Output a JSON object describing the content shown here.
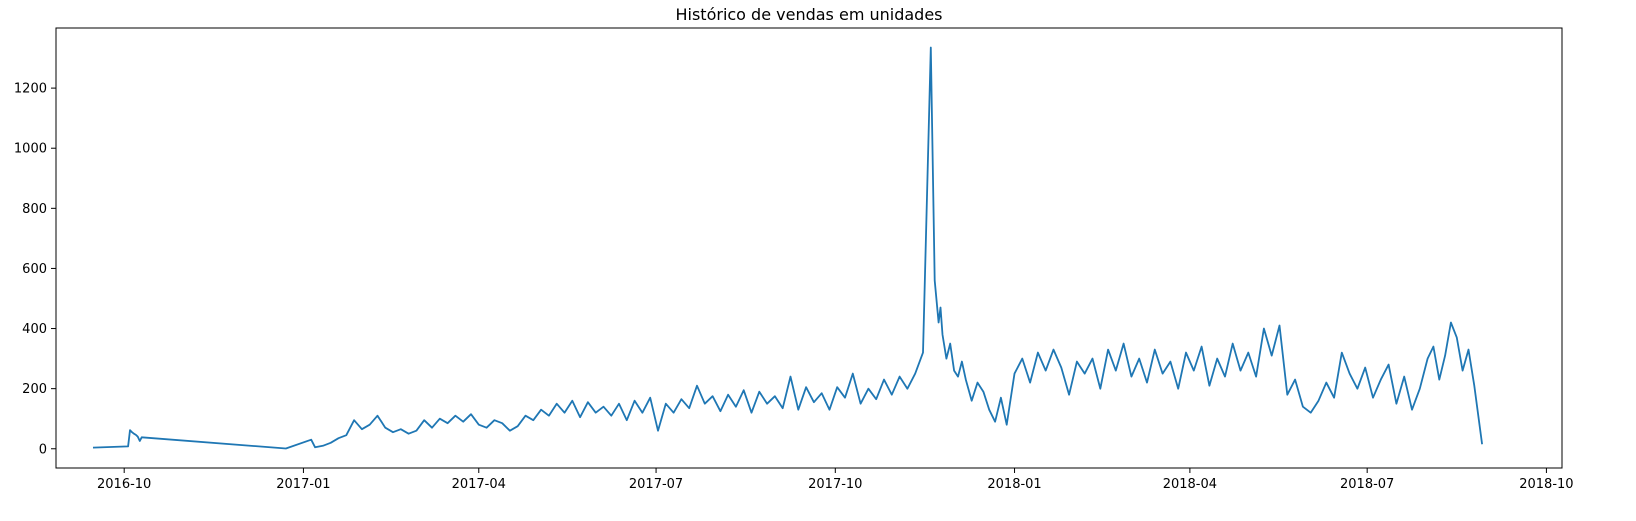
{
  "chart_data": {
    "type": "line",
    "title": "Histórico de vendas em unidades",
    "xlabel": "",
    "ylabel": "",
    "x_range": [
      "2016-08-27",
      "2018-10-09"
    ],
    "ylim": [
      -64,
      1400
    ],
    "grid": false,
    "legend": "none",
    "x_ticks": [
      {
        "date": "2016-10-01",
        "label": "2016-10"
      },
      {
        "date": "2017-01-01",
        "label": "2017-01"
      },
      {
        "date": "2017-04-01",
        "label": "2017-04"
      },
      {
        "date": "2017-07-01",
        "label": "2017-07"
      },
      {
        "date": "2017-10-01",
        "label": "2017-10"
      },
      {
        "date": "2018-01-01",
        "label": "2018-01"
      },
      {
        "date": "2018-04-01",
        "label": "2018-04"
      },
      {
        "date": "2018-07-01",
        "label": "2018-07"
      },
      {
        "date": "2018-10-01",
        "label": "2018-10"
      }
    ],
    "y_ticks": [
      0,
      200,
      400,
      600,
      800,
      1000,
      1200
    ],
    "series": [
      {
        "color": "#1f77b4",
        "x": [
          "2016-09-15",
          "2016-10-03",
          "2016-10-04",
          "2016-10-05",
          "2016-10-06",
          "2016-10-07",
          "2016-10-08",
          "2016-10-09",
          "2016-10-10",
          "2016-12-23",
          "2017-01-05",
          "2017-01-07",
          "2017-01-11",
          "2017-01-15",
          "2017-01-19",
          "2017-01-23",
          "2017-01-27",
          "2017-01-31",
          "2017-02-04",
          "2017-02-08",
          "2017-02-12",
          "2017-02-16",
          "2017-02-20",
          "2017-02-24",
          "2017-02-28",
          "2017-03-04",
          "2017-03-08",
          "2017-03-12",
          "2017-03-16",
          "2017-03-20",
          "2017-03-24",
          "2017-03-28",
          "2017-04-01",
          "2017-04-05",
          "2017-04-09",
          "2017-04-13",
          "2017-04-17",
          "2017-04-21",
          "2017-04-25",
          "2017-04-29",
          "2017-05-03",
          "2017-05-07",
          "2017-05-11",
          "2017-05-15",
          "2017-05-19",
          "2017-05-23",
          "2017-05-27",
          "2017-05-31",
          "2017-06-04",
          "2017-06-08",
          "2017-06-12",
          "2017-06-16",
          "2017-06-20",
          "2017-06-24",
          "2017-06-28",
          "2017-07-02",
          "2017-07-06",
          "2017-07-10",
          "2017-07-14",
          "2017-07-18",
          "2017-07-22",
          "2017-07-26",
          "2017-07-30",
          "2017-08-03",
          "2017-08-07",
          "2017-08-11",
          "2017-08-15",
          "2017-08-19",
          "2017-08-23",
          "2017-08-27",
          "2017-08-31",
          "2017-09-04",
          "2017-09-08",
          "2017-09-12",
          "2017-09-16",
          "2017-09-20",
          "2017-09-24",
          "2017-09-28",
          "2017-10-02",
          "2017-10-06",
          "2017-10-10",
          "2017-10-14",
          "2017-10-18",
          "2017-10-22",
          "2017-10-26",
          "2017-10-30",
          "2017-11-03",
          "2017-11-07",
          "2017-11-11",
          "2017-11-15",
          "2017-11-19",
          "2017-11-21",
          "2017-11-23",
          "2017-11-24",
          "2017-11-25",
          "2017-11-27",
          "2017-11-29",
          "2017-12-01",
          "2017-12-03",
          "2017-12-05",
          "2017-12-07",
          "2017-12-10",
          "2017-12-13",
          "2017-12-16",
          "2017-12-19",
          "2017-12-22",
          "2017-12-25",
          "2017-12-28",
          "2018-01-01",
          "2018-01-05",
          "2018-01-09",
          "2018-01-13",
          "2018-01-17",
          "2018-01-21",
          "2018-01-25",
          "2018-01-29",
          "2018-02-02",
          "2018-02-06",
          "2018-02-10",
          "2018-02-14",
          "2018-02-18",
          "2018-02-22",
          "2018-02-26",
          "2018-03-02",
          "2018-03-06",
          "2018-03-10",
          "2018-03-14",
          "2018-03-18",
          "2018-03-22",
          "2018-03-26",
          "2018-03-30",
          "2018-04-03",
          "2018-04-07",
          "2018-04-11",
          "2018-04-15",
          "2018-04-19",
          "2018-04-23",
          "2018-04-27",
          "2018-05-01",
          "2018-05-05",
          "2018-05-09",
          "2018-05-13",
          "2018-05-17",
          "2018-05-21",
          "2018-05-25",
          "2018-05-29",
          "2018-06-02",
          "2018-06-06",
          "2018-06-10",
          "2018-06-14",
          "2018-06-18",
          "2018-06-22",
          "2018-06-26",
          "2018-06-30",
          "2018-07-04",
          "2018-07-08",
          "2018-07-12",
          "2018-07-16",
          "2018-07-20",
          "2018-07-24",
          "2018-07-28",
          "2018-08-01",
          "2018-08-04",
          "2018-08-07",
          "2018-08-10",
          "2018-08-13",
          "2018-08-16",
          "2018-08-19",
          "2018-08-22",
          "2018-08-25",
          "2018-08-29"
        ],
        "y": [
          4,
          8,
          62,
          55,
          50,
          46,
          40,
          26,
          38,
          1,
          30,
          5,
          10,
          20,
          35,
          45,
          95,
          65,
          80,
          110,
          70,
          55,
          65,
          50,
          60,
          95,
          70,
          100,
          85,
          110,
          90,
          115,
          80,
          70,
          95,
          85,
          60,
          75,
          110,
          95,
          130,
          110,
          150,
          120,
          160,
          105,
          155,
          120,
          140,
          110,
          150,
          95,
          160,
          120,
          170,
          60,
          150,
          120,
          165,
          135,
          210,
          150,
          175,
          125,
          180,
          140,
          195,
          120,
          190,
          150,
          175,
          135,
          240,
          130,
          205,
          155,
          185,
          130,
          205,
          170,
          250,
          150,
          200,
          165,
          230,
          180,
          240,
          200,
          250,
          320,
          1335,
          560,
          420,
          470,
          380,
          300,
          350,
          260,
          240,
          290,
          230,
          160,
          220,
          190,
          130,
          90,
          170,
          80,
          250,
          300,
          220,
          320,
          260,
          330,
          270,
          180,
          290,
          250,
          300,
          200,
          330,
          260,
          350,
          240,
          300,
          220,
          330,
          250,
          290,
          200,
          320,
          260,
          340,
          210,
          300,
          240,
          350,
          260,
          320,
          240,
          400,
          310,
          410,
          180,
          230,
          140,
          120,
          160,
          220,
          170,
          320,
          250,
          200,
          270,
          170,
          230,
          280,
          150,
          240,
          130,
          200,
          300,
          340,
          230,
          310,
          420,
          370,
          260,
          330,
          210,
          15
        ]
      }
    ]
  }
}
